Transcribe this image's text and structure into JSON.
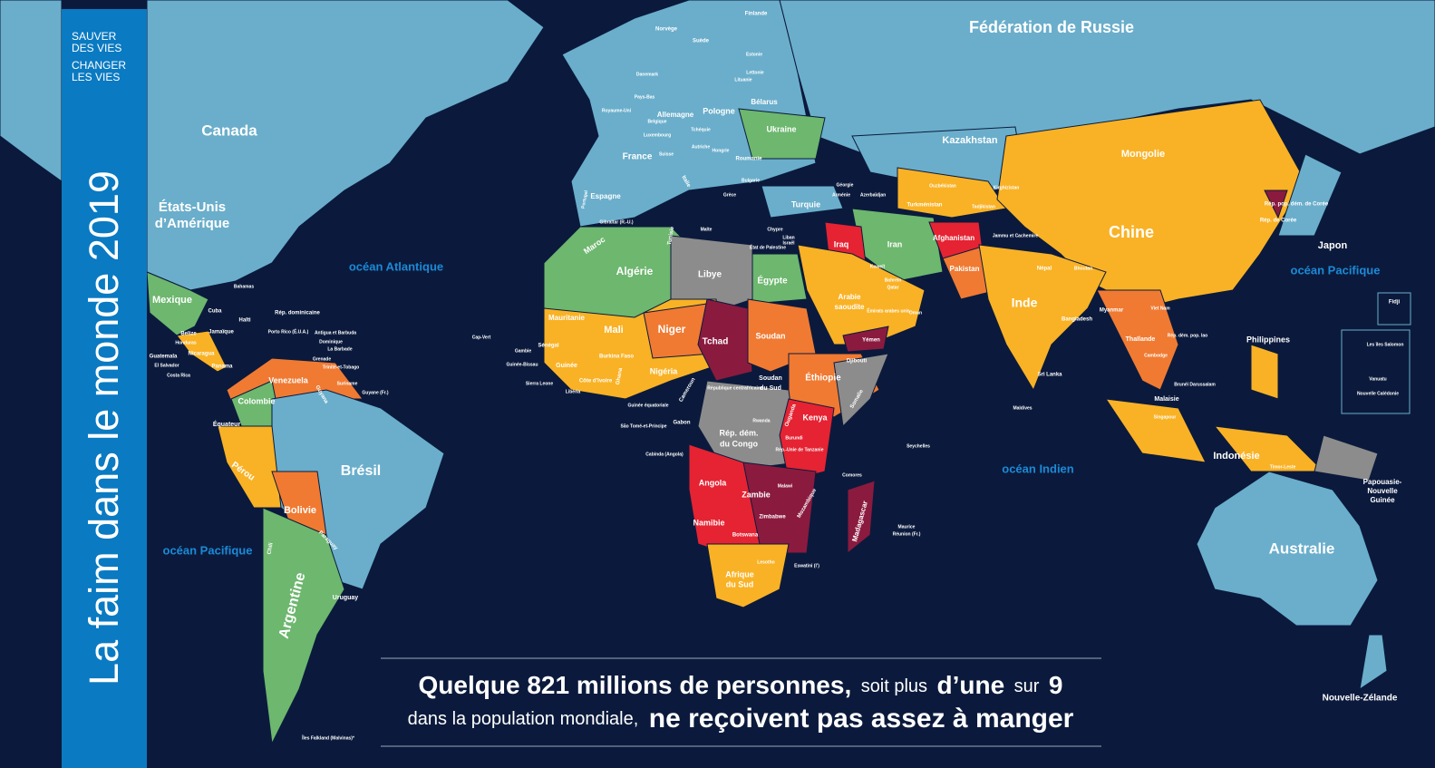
{
  "sidebar": {
    "tagline": [
      "SAUVER",
      "DES VIES",
      "CHANGER",
      "LES VIES"
    ],
    "title": "La faim dans le monde 2019"
  },
  "oceans": [
    "océan Atlantique",
    "océan Pacifique",
    "océan Indien",
    "océan Pacifique"
  ],
  "countries": [
    "Fédération de Russie",
    "Canada",
    "États-Unis",
    "d’Amérique",
    "Brésil",
    "Chine",
    "Australie",
    "Argentine",
    "Kazakhstan",
    "Mongolie",
    "Inde",
    "Algérie",
    "Libye",
    "Égypte",
    "Mali",
    "Niger",
    "Tchad",
    "Soudan",
    "Éthiopie",
    "Kenya",
    "Angola",
    "Namibie",
    "Zambie",
    "Afrique",
    "du Sud",
    "Madagascar",
    "Iran",
    "Iraq",
    "Turquie",
    "Afghanistan",
    "Pakistan",
    "Arabie",
    "saoudite",
    "Mexique",
    "Colombie",
    "Venezuela",
    "Pérou",
    "Bolivie",
    "Japon",
    "Indonésie",
    "Philippines",
    "Ukraine",
    "France",
    "Espagne",
    "Allemagne",
    "Pologne",
    "Mauritanie",
    "Nigéria",
    "Maroc",
    "Papouasie-",
    "Nouvelle",
    "Guinée",
    "Nouvelle-Zélande",
    "Bélarus",
    "Finlande",
    "Norvège",
    "Suède",
    "Thaïlande",
    "Myanmar",
    "Malaisie",
    "Rép. dém.",
    "du Congo",
    "Roumanie",
    "Zimbabwe",
    "Botswana",
    "Turkménistan",
    "Yémen",
    "Somalie",
    "Guinée",
    "Cuba",
    "Paraguay",
    "Uruguay",
    "Équateur",
    "Sri Lanka",
    "Bangladesh",
    "Népal",
    "Chili",
    "Guyana",
    "Soudan",
    "du Sud",
    "Djibouti",
    "Maldives",
    "Seychelles",
    "Comores",
    "Maurice",
    "Réunion (Fr.)",
    "Eswatini (l’)",
    "Lesotho",
    "Gabon",
    "Cameroun",
    "Rép.-Unie de Tanzanie",
    "Mozambique",
    "Malawi",
    "Burundi",
    "Rwanda",
    "Ouganda",
    "Côte d’Ivoire",
    "Ghana",
    "Burkina Faso",
    "Sénégal",
    "Gambie",
    "Guinée-Bissau",
    "Sierra Leone",
    "Libéria",
    "Cap-Vert",
    "République centrafricaine",
    "Guinée équatoriale",
    "São Tomé-et-Príncipe",
    "Cabinda (Angola)",
    "Tunisie",
    "Malte",
    "Chypre",
    "Liban",
    "Israël",
    "État de Palestine",
    "Gibraltar (R.-U.)",
    "Portugal",
    "Italie",
    "Grèce",
    "Bulgarie",
    "Hongrie",
    "Autriche",
    "Tchéquie",
    "Danemark",
    "Pays-Bas",
    "Royaume-Uni",
    "Belgique",
    "Luxembourg",
    "Suisse",
    "Lettonie",
    "Lituanie",
    "Estonie",
    "Géorgie",
    "Arménie",
    "Azerbaïdjan",
    "Ouzbékistan",
    "Kirghizistan",
    "Tadjikistan",
    "Jammu et Cachemire",
    "Koweït",
    "Bahreïn",
    "Qatar",
    "Émirats arabes unis",
    "Oman",
    "Bhoutan",
    "Viet Nam",
    "Rép. dém. pop. lao",
    "Cambodge",
    "Brunéi Darussalam",
    "Singapour",
    "Timor-Leste",
    "Rép. pop. dém. de Corée",
    "Rép. de Corée",
    "Fidji",
    "Les îles Salomon",
    "Vanuatu",
    "Nouvelle Calédonie",
    "Bahamas",
    "Rép. dominicaine",
    "Haïti",
    "Jamaïque",
    "Porto Rico (É.U.A.)",
    "Antigua et Barbuda",
    "Dominique",
    "La Barbade",
    "Grenade",
    "Trinité-et-Tobago",
    "Belize",
    "Guatemala",
    "El Salvador",
    "Honduras",
    "Nicaragua",
    "Costa Rica",
    "Panama",
    "Suriname",
    "Guyane (Fr.)",
    "Îles Falkland (Malvinas)*"
  ],
  "caption": {
    "line1": [
      "Quelque 821 millions de personnes,",
      "soit plus",
      "d’une",
      "sur",
      "9"
    ],
    "line2": [
      "dans la population mondiale,",
      "ne reçoivent pas assez à manger"
    ]
  }
}
